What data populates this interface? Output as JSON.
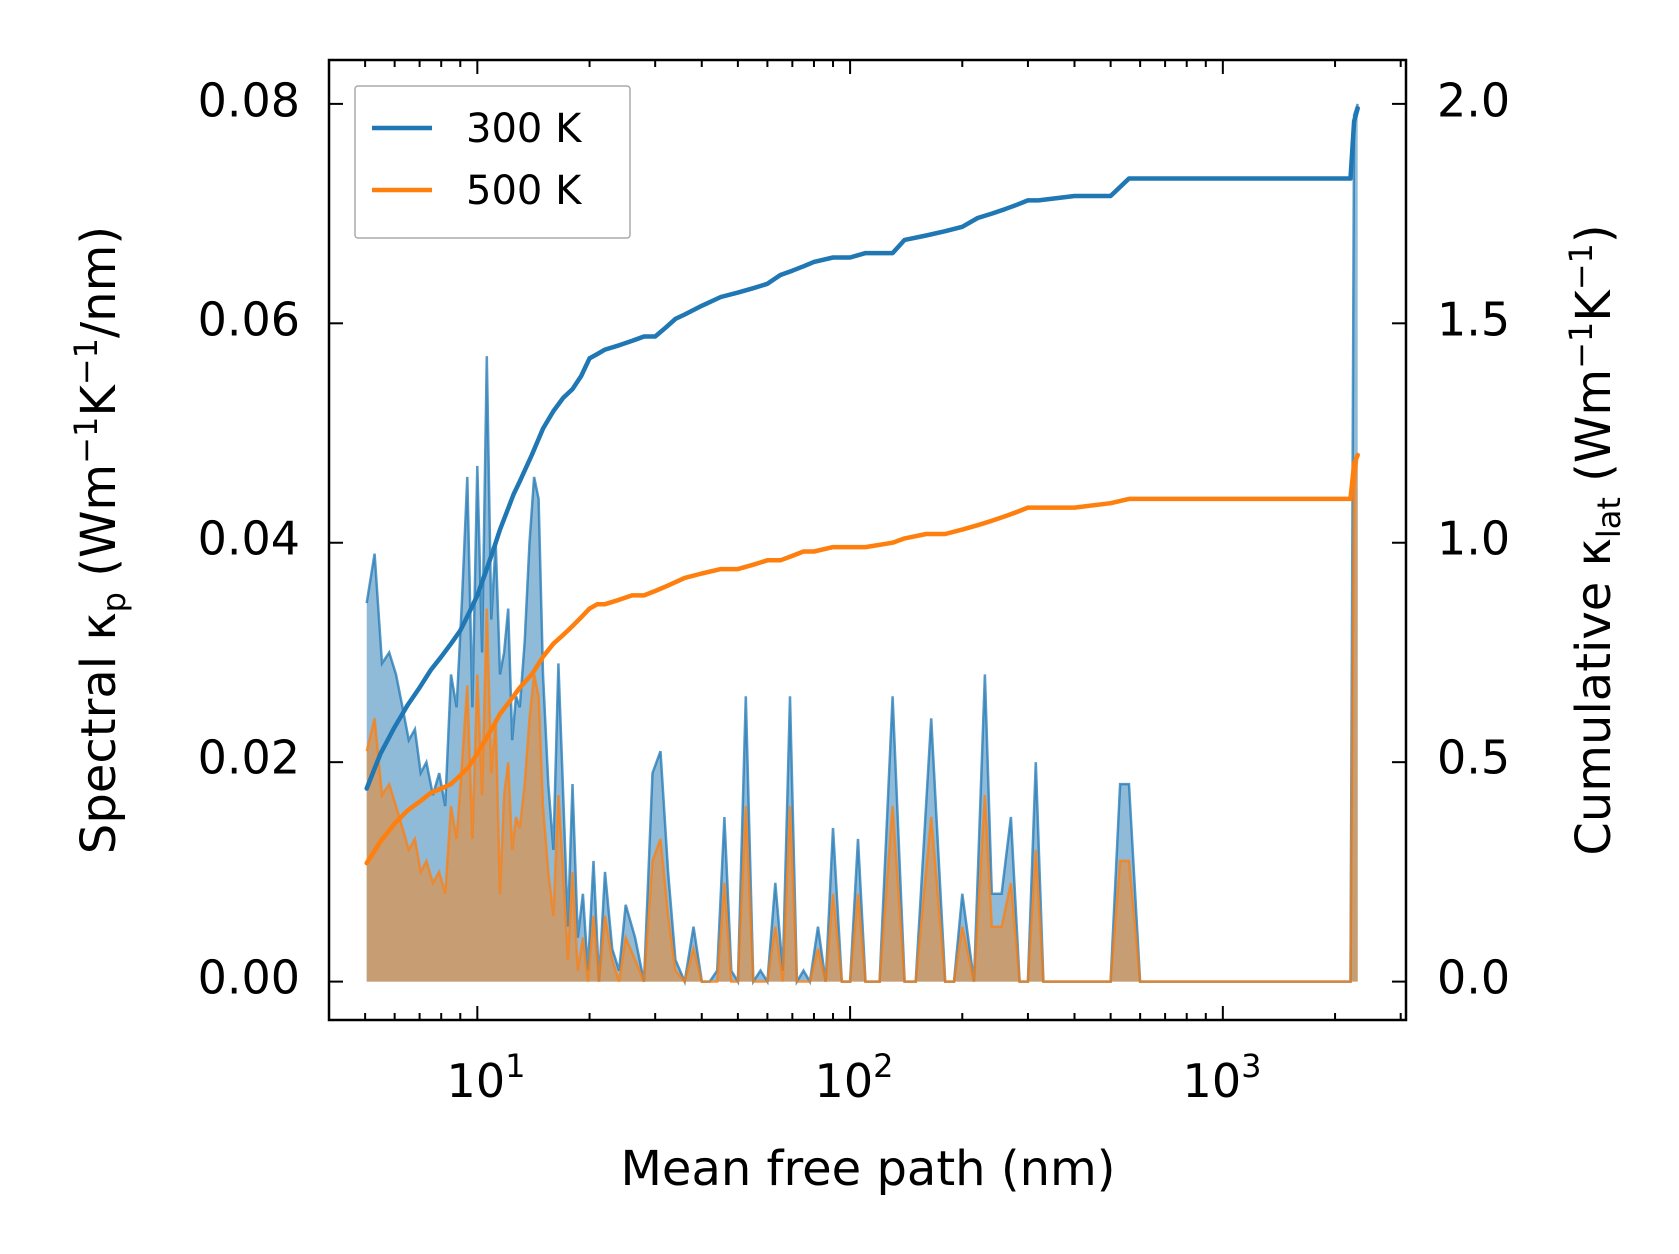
{
  "chart_data": {
    "type": "line",
    "title": "",
    "xlabel": "Mean free path (nm)",
    "ylabel": "Spectral κp (Wm−1K−1/nm)",
    "ylabel_parts": [
      "Spectral κ",
      "p",
      " (Wm",
      "−1",
      "K",
      "−1",
      "/nm)"
    ],
    "y2label": "Cumulative κlat (Wm−1K−1)",
    "y2label_parts": [
      "Cumulative κ",
      "lat",
      " (Wm",
      "−1",
      "K",
      "−1",
      ")"
    ],
    "xscale": "log",
    "xlim": [
      4,
      3100
    ],
    "ylim": [
      -0.0035,
      0.084
    ],
    "y2lim": [
      -0.0875,
      2.1
    ],
    "x_ticks": [
      {
        "value": 10,
        "base": "10",
        "exp": "1"
      },
      {
        "value": 100,
        "base": "10",
        "exp": "2"
      },
      {
        "value": 1000,
        "base": "10",
        "exp": "3"
      }
    ],
    "y_ticks": [
      0.0,
      0.02,
      0.04,
      0.06,
      0.08
    ],
    "y_tick_labels": [
      "0.00",
      "0.02",
      "0.04",
      "0.06",
      "0.08"
    ],
    "y2_ticks": [
      0.0,
      0.5,
      1.0,
      1.5,
      2.0
    ],
    "y2_tick_labels": [
      "0.0",
      "0.5",
      "1.0",
      "1.5",
      "2.0"
    ],
    "legend": {
      "position": "top-left",
      "entries": [
        "300 K",
        "500 K"
      ]
    },
    "colors": {
      "300 K": "#1f77b4",
      "500 K": "#ff7f0e"
    },
    "spectral": {
      "series": [
        {
          "name": "300 K",
          "x": [
            5.05,
            5.3,
            5.55,
            5.8,
            6.05,
            6.3,
            6.55,
            6.8,
            7.05,
            7.3,
            7.6,
            7.9,
            8.2,
            8.5,
            8.8,
            9.1,
            9.4,
            9.7,
            10.0,
            10.3,
            10.6,
            10.9,
            11.2,
            11.5,
            11.8,
            12.1,
            12.4,
            12.7,
            13.0,
            13.4,
            13.8,
            14.2,
            14.6,
            15.0,
            15.5,
            16.0,
            16.5,
            17.0,
            17.5,
            18.0,
            18.6,
            19.2,
            19.8,
            20.5,
            21.2,
            22.0,
            23.0,
            24.0,
            25.0,
            26.5,
            28.0,
            29.5,
            31.0,
            32.5,
            34.0,
            36.0,
            38.0,
            40.0,
            42.0,
            44.0,
            46.0,
            48.0,
            50.0,
            52.5,
            55.0,
            57.5,
            60.0,
            63.0,
            66.0,
            69.0,
            72.0,
            75.0,
            78.0,
            82.0,
            86.0,
            90.0,
            95.0,
            100.0,
            105.0,
            110.0,
            120.0,
            130.0,
            140.0,
            150.0,
            165.0,
            180.0,
            190.0,
            200.0,
            215.0,
            230.0,
            240.0,
            255.0,
            270.0,
            285.0,
            300.0,
            315.0,
            330.0,
            400.0,
            500.0,
            530.0,
            560.0,
            600.0,
            1000.0,
            2000.0,
            2200.0,
            2250.0,
            2300.0
          ],
          "values": [
            0.0345,
            0.039,
            0.029,
            0.03,
            0.028,
            0.025,
            0.022,
            0.023,
            0.019,
            0.02,
            0.017,
            0.019,
            0.016,
            0.028,
            0.025,
            0.035,
            0.046,
            0.025,
            0.047,
            0.03,
            0.057,
            0.033,
            0.04,
            0.028,
            0.03,
            0.034,
            0.022,
            0.026,
            0.025,
            0.031,
            0.04,
            0.046,
            0.044,
            0.028,
            0.018,
            0.012,
            0.029,
            0.017,
            0.005,
            0.018,
            0.004,
            0.008,
            0.001,
            0.011,
            0.0,
            0.01,
            0.003,
            0.001,
            0.007,
            0.004,
            0.0,
            0.019,
            0.021,
            0.01,
            0.002,
            0.0,
            0.005,
            0.0,
            0.0,
            0.001,
            0.015,
            0.001,
            0.0,
            0.026,
            0.0,
            0.001,
            0.0,
            0.009,
            0.001,
            0.026,
            0.0,
            0.001,
            0.0,
            0.005,
            0.0,
            0.014,
            0.0,
            0.0,
            0.013,
            0.0,
            0.0,
            0.026,
            0.0,
            0.0,
            0.024,
            0.0,
            0.0,
            0.008,
            0.0,
            0.028,
            0.008,
            0.008,
            0.015,
            0.0,
            0.0,
            0.02,
            0.0,
            0.0,
            0.0,
            0.018,
            0.018,
            0.0,
            0.0,
            0.0,
            0.0,
            0.079,
            0.08
          ]
        },
        {
          "name": "500 K",
          "x": [
            5.05,
            5.3,
            5.55,
            5.8,
            6.05,
            6.3,
            6.55,
            6.8,
            7.05,
            7.3,
            7.6,
            7.9,
            8.2,
            8.5,
            8.8,
            9.1,
            9.4,
            9.7,
            10.0,
            10.3,
            10.6,
            10.9,
            11.2,
            11.5,
            11.8,
            12.1,
            12.4,
            12.7,
            13.0,
            13.4,
            13.8,
            14.2,
            14.6,
            15.0,
            15.5,
            16.0,
            16.5,
            17.0,
            17.5,
            18.0,
            18.6,
            19.2,
            19.8,
            20.5,
            21.2,
            22.0,
            23.0,
            24.0,
            25.0,
            26.5,
            28.0,
            29.5,
            31.0,
            32.5,
            34.0,
            36.0,
            38.0,
            40.0,
            42.0,
            44.0,
            46.0,
            48.0,
            50.0,
            52.5,
            55.0,
            57.5,
            60.0,
            63.0,
            66.0,
            69.0,
            72.0,
            75.0,
            78.0,
            82.0,
            86.0,
            90.0,
            95.0,
            100.0,
            105.0,
            110.0,
            120.0,
            130.0,
            140.0,
            150.0,
            165.0,
            180.0,
            190.0,
            200.0,
            215.0,
            230.0,
            240.0,
            255.0,
            270.0,
            285.0,
            300.0,
            315.0,
            330.0,
            400.0,
            500.0,
            530.0,
            560.0,
            600.0,
            1000.0,
            2000.0,
            2200.0,
            2250.0,
            2300.0
          ],
          "values": [
            0.021,
            0.024,
            0.017,
            0.018,
            0.016,
            0.014,
            0.012,
            0.013,
            0.01,
            0.011,
            0.009,
            0.01,
            0.008,
            0.016,
            0.013,
            0.02,
            0.027,
            0.013,
            0.028,
            0.017,
            0.034,
            0.019,
            0.024,
            0.008,
            0.017,
            0.02,
            0.012,
            0.015,
            0.014,
            0.018,
            0.024,
            0.028,
            0.026,
            0.016,
            0.01,
            0.006,
            0.017,
            0.01,
            0.002,
            0.01,
            0.001,
            0.004,
            0.0,
            0.006,
            0.0,
            0.006,
            0.002,
            0.0,
            0.004,
            0.002,
            0.0,
            0.011,
            0.013,
            0.006,
            0.001,
            0.0,
            0.003,
            0.0,
            0.0,
            0.0,
            0.009,
            0.0,
            0.0,
            0.016,
            0.0,
            0.0,
            0.0,
            0.005,
            0.0,
            0.016,
            0.0,
            0.0,
            0.0,
            0.003,
            0.0,
            0.008,
            0.0,
            0.0,
            0.008,
            0.0,
            0.0,
            0.016,
            0.0,
            0.0,
            0.015,
            0.0,
            0.0,
            0.005,
            0.0,
            0.017,
            0.005,
            0.005,
            0.009,
            0.0,
            0.0,
            0.012,
            0.0,
            0.0,
            0.0,
            0.011,
            0.011,
            0.0,
            0.0,
            0.0,
            0.0,
            0.045,
            0.048
          ]
        }
      ]
    },
    "cumulative": {
      "series": [
        {
          "name": "300 K",
          "x": [
            5.05,
            5.5,
            6.0,
            6.5,
            7.0,
            7.5,
            8.0,
            8.5,
            9.0,
            9.5,
            10.0,
            10.5,
            11.0,
            11.5,
            12.0,
            12.5,
            13.0,
            14.0,
            15.0,
            16.0,
            17.0,
            18.0,
            19.0,
            20.0,
            21.0,
            22.0,
            24.0,
            26.0,
            28.0,
            30.0,
            32.0,
            34.0,
            36.0,
            40.0,
            45.0,
            50.0,
            55.0,
            60.0,
            65.0,
            70.0,
            75.0,
            80.0,
            90.0,
            100.0,
            110.0,
            130.0,
            140.0,
            160.0,
            180.0,
            200.0,
            220.0,
            240.0,
            260.0,
            280.0,
            300.0,
            320.0,
            400.0,
            500.0,
            560.0,
            700.0,
            1000.0,
            2000.0,
            2200.0,
            2250.0,
            2300.0
          ],
          "values": [
            0.44,
            0.52,
            0.58,
            0.63,
            0.67,
            0.71,
            0.74,
            0.77,
            0.8,
            0.84,
            0.88,
            0.93,
            0.98,
            1.03,
            1.07,
            1.11,
            1.14,
            1.2,
            1.26,
            1.3,
            1.33,
            1.35,
            1.38,
            1.42,
            1.43,
            1.44,
            1.45,
            1.46,
            1.47,
            1.47,
            1.49,
            1.51,
            1.52,
            1.54,
            1.56,
            1.57,
            1.58,
            1.59,
            1.61,
            1.62,
            1.63,
            1.64,
            1.65,
            1.65,
            1.66,
            1.66,
            1.69,
            1.7,
            1.71,
            1.72,
            1.74,
            1.75,
            1.76,
            1.77,
            1.78,
            1.78,
            1.79,
            1.79,
            1.83,
            1.83,
            1.83,
            1.83,
            1.83,
            1.96,
            1.99
          ]
        },
        {
          "name": "500 K",
          "x": [
            5.05,
            5.5,
            6.0,
            6.5,
            7.0,
            7.5,
            8.0,
            8.5,
            9.0,
            9.5,
            10.0,
            10.5,
            11.0,
            11.5,
            12.0,
            12.5,
            13.0,
            14.0,
            15.0,
            16.0,
            17.0,
            18.0,
            19.0,
            20.0,
            21.0,
            22.0,
            24.0,
            26.0,
            28.0,
            30.0,
            32.0,
            34.0,
            36.0,
            40.0,
            45.0,
            50.0,
            55.0,
            60.0,
            65.0,
            70.0,
            75.0,
            80.0,
            90.0,
            100.0,
            110.0,
            130.0,
            140.0,
            160.0,
            180.0,
            200.0,
            220.0,
            240.0,
            260.0,
            280.0,
            300.0,
            320.0,
            400.0,
            500.0,
            560.0,
            700.0,
            1000.0,
            2000.0,
            2200.0,
            2250.0,
            2300.0
          ],
          "values": [
            0.27,
            0.32,
            0.36,
            0.39,
            0.41,
            0.43,
            0.44,
            0.45,
            0.47,
            0.49,
            0.52,
            0.55,
            0.58,
            0.61,
            0.63,
            0.65,
            0.67,
            0.7,
            0.74,
            0.77,
            0.79,
            0.81,
            0.83,
            0.85,
            0.86,
            0.86,
            0.87,
            0.88,
            0.88,
            0.89,
            0.9,
            0.91,
            0.92,
            0.93,
            0.94,
            0.94,
            0.95,
            0.96,
            0.96,
            0.97,
            0.98,
            0.98,
            0.99,
            0.99,
            0.99,
            1.0,
            1.01,
            1.02,
            1.02,
            1.03,
            1.04,
            1.05,
            1.06,
            1.07,
            1.08,
            1.08,
            1.08,
            1.09,
            1.1,
            1.1,
            1.1,
            1.1,
            1.1,
            1.18,
            1.2
          ]
        }
      ]
    }
  }
}
